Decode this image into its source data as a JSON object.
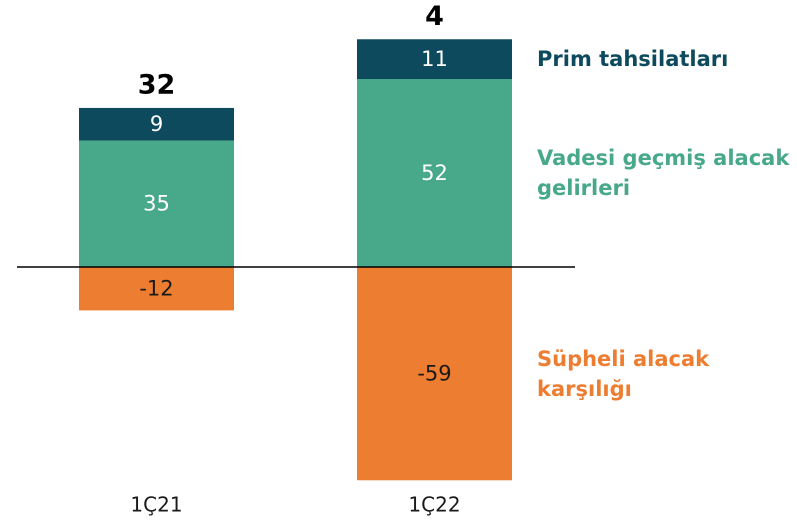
{
  "chart_data": {
    "type": "stacked_bar",
    "categories": [
      "1Ç21",
      "1Ç22"
    ],
    "series": [
      {
        "name": "Süpheli alacak karşılığı",
        "color": "#ed7d31",
        "values": [
          -12,
          -59
        ]
      },
      {
        "name": "Vadesi geçmiş alacak gelirleri",
        "color": "#47a88a",
        "values": [
          35,
          52
        ]
      },
      {
        "name": "Prim tahsilatları",
        "color": "#0d4a5e",
        "values": [
          9,
          11
        ]
      }
    ],
    "totals": [
      32,
      4
    ]
  }
}
